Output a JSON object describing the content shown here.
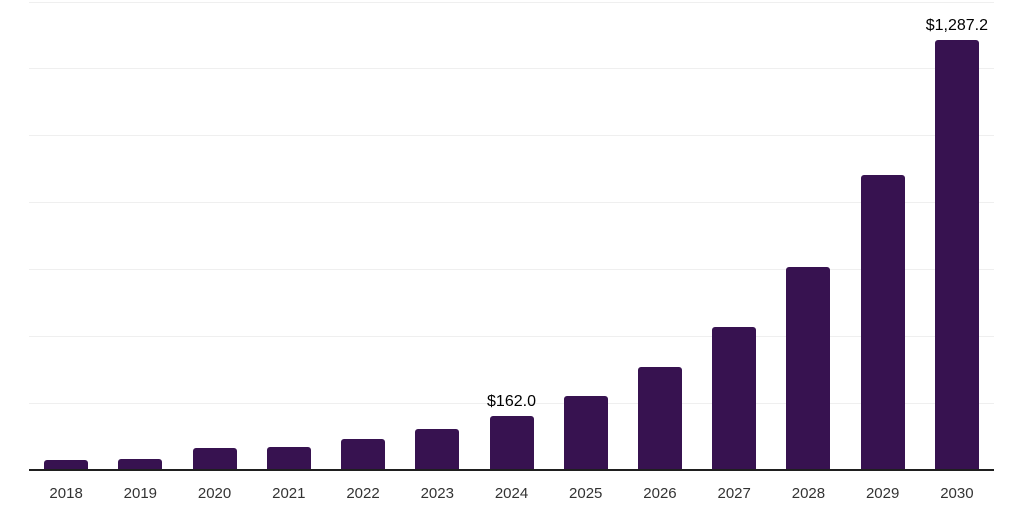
{
  "chart_data": {
    "type": "bar",
    "title": "",
    "xlabel": "",
    "ylabel": "",
    "categories": [
      "2018",
      "2019",
      "2020",
      "2021",
      "2022",
      "2023",
      "2024",
      "2025",
      "2026",
      "2027",
      "2028",
      "2029",
      "2030"
    ],
    "values": [
      31,
      33,
      67,
      70,
      93,
      122,
      162.0,
      220,
      307,
      427,
      607,
      881,
      1287.2
    ],
    "data_labels": [
      "",
      "",
      "",
      "",
      "",
      "",
      "$162.0",
      "",
      "",
      "",
      "",
      "",
      "$1,287.2"
    ],
    "ylim": [
      0,
      1400
    ],
    "gridline_step": 200,
    "grid": true,
    "legend": false,
    "y_axis_labels_visible": false,
    "colors": {
      "bar": "#371250",
      "axis_line": "#1f1f1f",
      "gridline": "#efefef",
      "background": "#ffffff",
      "tick_label": "#333333",
      "data_label": "#000000"
    }
  }
}
